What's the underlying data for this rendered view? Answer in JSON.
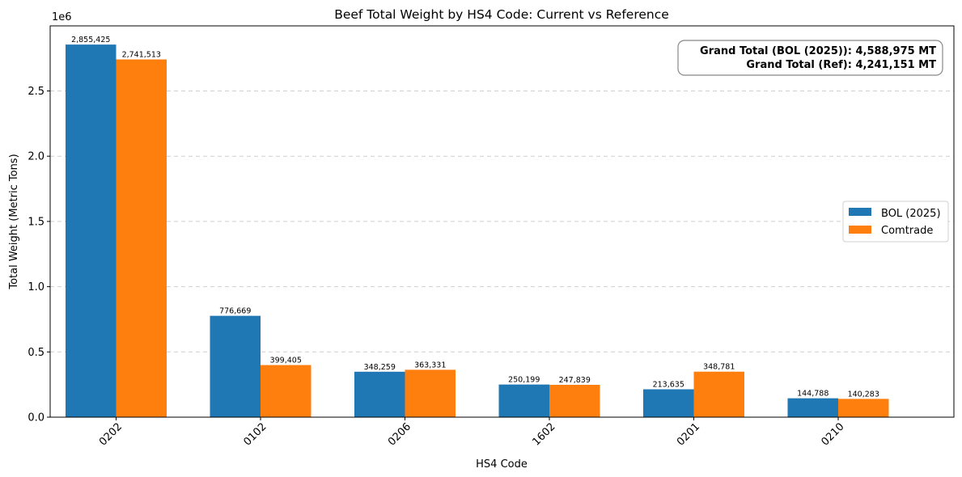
{
  "chart_data": {
    "type": "bar",
    "title": "Beef Total Weight by HS4 Code: Current vs Reference",
    "xlabel": "HS4 Code",
    "ylabel": "Total Weight (Metric Tons)",
    "y_multiplier_label": "1e6",
    "ylim": [
      0,
      2998696
    ],
    "yticks": [
      0,
      500000,
      1000000,
      1500000,
      2000000,
      2500000
    ],
    "ytick_labels": [
      "0.0",
      "0.5",
      "1.0",
      "1.5",
      "2.0",
      "2.5"
    ],
    "grid": "y-dashed",
    "legend_position": "center-right",
    "categories": [
      "0202",
      "0102",
      "0206",
      "1602",
      "0201",
      "0210"
    ],
    "series": [
      {
        "name": "BOL (2025)",
        "color": "#1f77b4",
        "values": [
          2855425,
          776669,
          348259,
          250199,
          213635,
          144788
        ],
        "labels": [
          "2,855,425",
          "776,669",
          "348,259",
          "250,199",
          "213,635",
          "144,788"
        ]
      },
      {
        "name": "Comtrade",
        "color": "#ff7f0e",
        "values": [
          2741513,
          399405,
          363331,
          247839,
          348781,
          140283
        ],
        "labels": [
          "2,741,513",
          "399,405",
          "363,331",
          "247,839",
          "348,781",
          "140,283"
        ]
      }
    ],
    "annotation": [
      "Grand Total (BOL (2025)): 4,588,975 MT",
      "Grand Total (Ref): 4,241,151 MT"
    ]
  }
}
